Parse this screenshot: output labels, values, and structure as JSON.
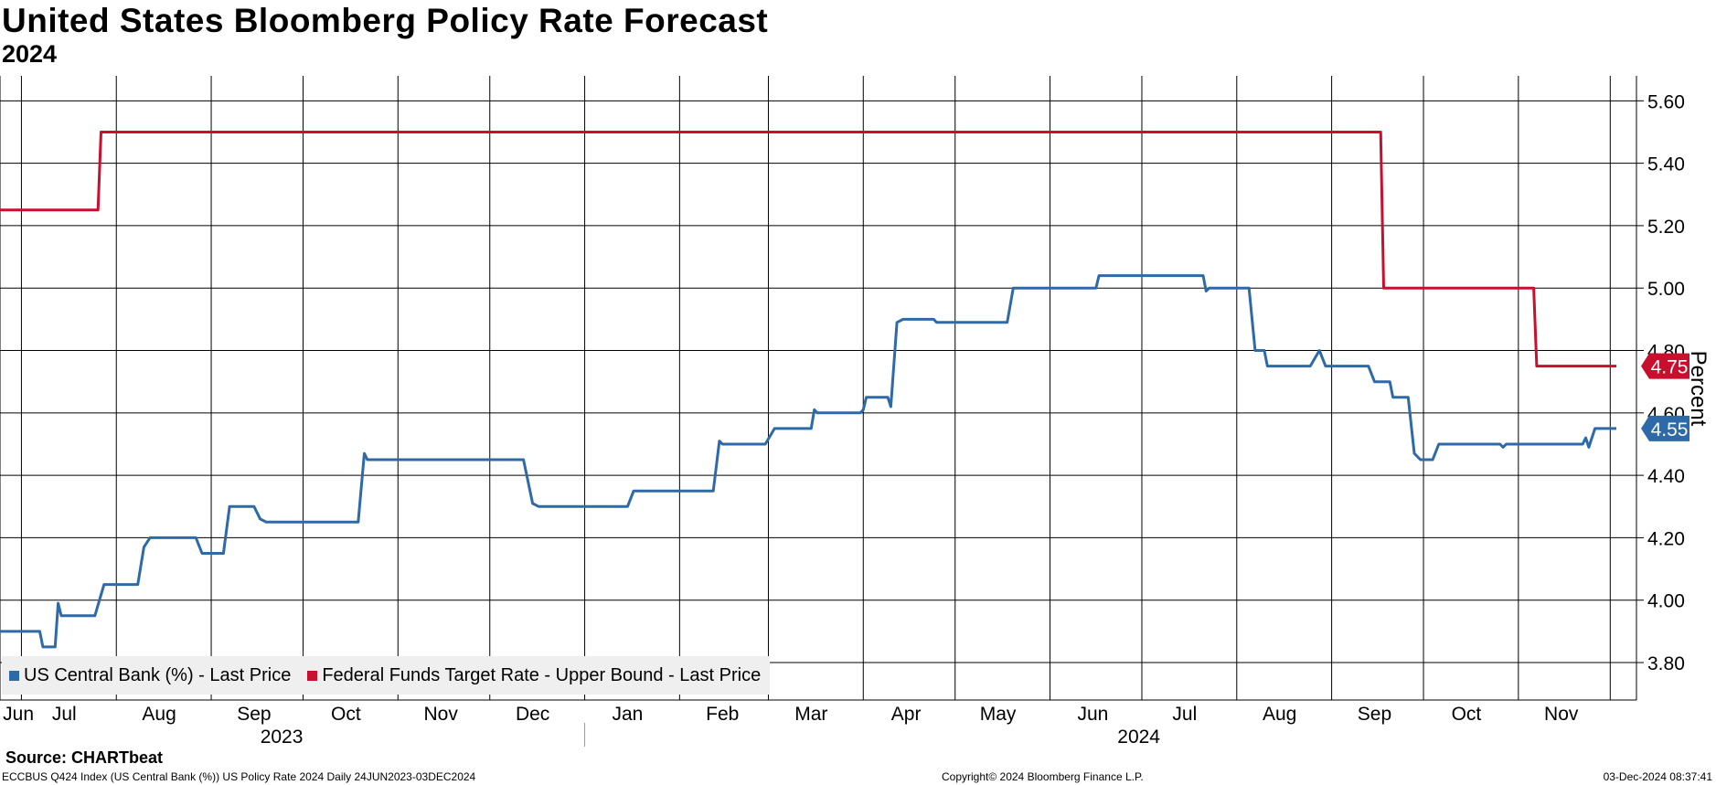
{
  "title": "United States Bloomberg Policy Rate Forecast",
  "subtitle": "2024",
  "source": "Source: CHARTbeat",
  "footer": {
    "left": "ECCBUS Q424 Index (US Central Bank (%)) US Policy Rate 2024  Daily 24JUN2023-03DEC2024",
    "center": "Copyright© 2024 Bloomberg Finance L.P.",
    "right": "03-Dec-2024 08:37:41"
  },
  "chart_data": {
    "type": "line",
    "ylabel": "Percent",
    "ylim": [
      3.68,
      5.68
    ],
    "yticks": [
      "5.60",
      "5.40",
      "5.20",
      "5.00",
      "4.80",
      "4.60",
      "4.40",
      "4.20",
      "4.00",
      "3.80"
    ],
    "grid": true,
    "legend_position": "bottom-left",
    "x_range": [
      "2023-06-24",
      "2024-12-03"
    ],
    "x_month_labels": [
      {
        "label": "Jun",
        "date": "2023-06-30"
      },
      {
        "label": "Jul",
        "date": "2023-07-15"
      },
      {
        "label": "Aug",
        "date": "2023-08-15"
      },
      {
        "label": "Sep",
        "date": "2023-09-15"
      },
      {
        "label": "Oct",
        "date": "2023-10-15"
      },
      {
        "label": "Nov",
        "date": "2023-11-15"
      },
      {
        "label": "Dec",
        "date": "2023-12-15"
      },
      {
        "label": "Jan",
        "date": "2024-01-15"
      },
      {
        "label": "Feb",
        "date": "2024-02-15"
      },
      {
        "label": "Mar",
        "date": "2024-03-15"
      },
      {
        "label": "Apr",
        "date": "2024-04-15"
      },
      {
        "label": "May",
        "date": "2024-05-15"
      },
      {
        "label": "Jun",
        "date": "2024-06-15"
      },
      {
        "label": "Jul",
        "date": "2024-07-15"
      },
      {
        "label": "Aug",
        "date": "2024-08-15"
      },
      {
        "label": "Sep",
        "date": "2024-09-15"
      },
      {
        "label": "Oct",
        "date": "2024-10-15"
      },
      {
        "label": "Nov",
        "date": "2024-11-15"
      }
    ],
    "x_year_labels": [
      {
        "label": "2023",
        "date": "2023-09-24"
      },
      {
        "label": "2024",
        "date": "2024-06-30"
      }
    ],
    "year_divider_date": "2024-01-01",
    "series": [
      {
        "name": "US Central Bank (%) - Last Price",
        "color": "#2e6aa8",
        "last_value": "4.55",
        "points": [
          [
            "2023-06-24",
            3.9
          ],
          [
            "2023-07-07",
            3.9
          ],
          [
            "2023-07-08",
            3.85
          ],
          [
            "2023-07-12",
            3.85
          ],
          [
            "2023-07-13",
            3.99
          ],
          [
            "2023-07-14",
            3.95
          ],
          [
            "2023-07-25",
            3.95
          ],
          [
            "2023-07-28",
            4.05
          ],
          [
            "2023-08-08",
            4.05
          ],
          [
            "2023-08-10",
            4.17
          ],
          [
            "2023-08-12",
            4.2
          ],
          [
            "2023-08-27",
            4.2
          ],
          [
            "2023-08-29",
            4.15
          ],
          [
            "2023-09-05",
            4.15
          ],
          [
            "2023-09-07",
            4.3
          ],
          [
            "2023-09-15",
            4.3
          ],
          [
            "2023-09-17",
            4.26
          ],
          [
            "2023-09-19",
            4.25
          ],
          [
            "2023-10-19",
            4.25
          ],
          [
            "2023-10-21",
            4.47
          ],
          [
            "2023-10-22",
            4.45
          ],
          [
            "2023-12-12",
            4.45
          ],
          [
            "2023-12-15",
            4.31
          ],
          [
            "2023-12-17",
            4.3
          ],
          [
            "2024-01-15",
            4.3
          ],
          [
            "2024-01-17",
            4.35
          ],
          [
            "2024-02-12",
            4.35
          ],
          [
            "2024-02-14",
            4.51
          ],
          [
            "2024-02-15",
            4.5
          ],
          [
            "2024-02-29",
            4.5
          ],
          [
            "2024-03-03",
            4.55
          ],
          [
            "2024-03-15",
            4.55
          ],
          [
            "2024-03-16",
            4.61
          ],
          [
            "2024-03-17",
            4.6
          ],
          [
            "2024-03-31",
            4.6
          ],
          [
            "2024-04-01",
            4.61
          ],
          [
            "2024-04-02",
            4.65
          ],
          [
            "2024-04-09",
            4.65
          ],
          [
            "2024-04-10",
            4.62
          ],
          [
            "2024-04-12",
            4.89
          ],
          [
            "2024-04-14",
            4.9
          ],
          [
            "2024-04-24",
            4.9
          ],
          [
            "2024-04-25",
            4.89
          ],
          [
            "2024-05-18",
            4.89
          ],
          [
            "2024-05-20",
            5.0
          ],
          [
            "2024-06-16",
            5.0
          ],
          [
            "2024-06-17",
            5.04
          ],
          [
            "2024-07-21",
            5.04
          ],
          [
            "2024-07-22",
            4.99
          ],
          [
            "2024-07-23",
            5.0
          ],
          [
            "2024-08-05",
            5.0
          ],
          [
            "2024-08-07",
            4.8
          ],
          [
            "2024-08-10",
            4.8
          ],
          [
            "2024-08-11",
            4.75
          ],
          [
            "2024-08-25",
            4.75
          ],
          [
            "2024-08-28",
            4.8
          ],
          [
            "2024-08-30",
            4.75
          ],
          [
            "2024-09-13",
            4.75
          ],
          [
            "2024-09-15",
            4.7
          ],
          [
            "2024-09-20",
            4.7
          ],
          [
            "2024-09-21",
            4.65
          ],
          [
            "2024-09-26",
            4.65
          ],
          [
            "2024-09-28",
            4.47
          ],
          [
            "2024-09-30",
            4.45
          ],
          [
            "2024-10-04",
            4.45
          ],
          [
            "2024-10-06",
            4.5
          ],
          [
            "2024-10-26",
            4.5
          ],
          [
            "2024-10-27",
            4.49
          ],
          [
            "2024-10-28",
            4.5
          ],
          [
            "2024-11-22",
            4.5
          ],
          [
            "2024-11-23",
            4.52
          ],
          [
            "2024-11-24",
            4.49
          ],
          [
            "2024-11-26",
            4.55
          ],
          [
            "2024-12-03",
            4.55
          ]
        ]
      },
      {
        "name": "Federal Funds Target Rate - Upper Bound - Last Price",
        "color": "#c8102e",
        "last_value": "4.75",
        "points": [
          [
            "2023-06-24",
            5.25
          ],
          [
            "2023-07-26",
            5.25
          ],
          [
            "2023-07-27",
            5.5
          ],
          [
            "2024-09-17",
            5.5
          ],
          [
            "2024-09-18",
            5.0
          ],
          [
            "2024-11-06",
            5.0
          ],
          [
            "2024-11-07",
            4.75
          ],
          [
            "2024-12-03",
            4.75
          ]
        ]
      }
    ]
  }
}
